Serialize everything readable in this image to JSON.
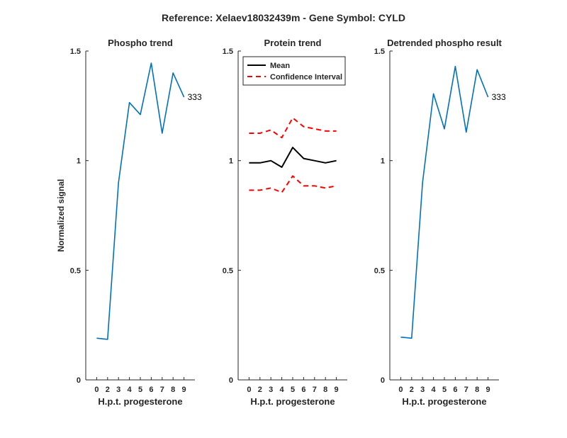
{
  "figure": {
    "title": "Reference:  Xelaev18032439m - Gene Symbol:  CYLD",
    "ylabel": "Normalized signal"
  },
  "chart_data": [
    {
      "type": "line",
      "title": "Phospho trend",
      "xlabel": "H.p.t. progesterone",
      "ylabel": "Normalized signal",
      "x_ticks": [
        "0",
        "2",
        "3",
        "4",
        "5",
        "6",
        "7",
        "8",
        "9"
      ],
      "y_ticks": [
        "0",
        "0.5",
        "1",
        "1.5"
      ],
      "ylim": [
        0,
        1.5
      ],
      "grid": false,
      "series": [
        {
          "color": "#0072BD",
          "values": [
            0.19,
            0.185,
            0.9,
            1.265,
            1.21,
            1.445,
            1.125,
            1.4,
            1.29
          ],
          "end_label": "333"
        }
      ]
    },
    {
      "type": "line",
      "title": "Protein trend",
      "xlabel": "H.p.t. progesterone",
      "x_ticks": [
        "0",
        "2",
        "3",
        "4",
        "5",
        "6",
        "7",
        "8",
        "9"
      ],
      "y_ticks": [
        "0",
        "0.5",
        "1",
        "1.5"
      ],
      "ylim": [
        0,
        1.5
      ],
      "grid": false,
      "legend": {
        "placement": "top-left"
      },
      "series": [
        {
          "name": "Mean",
          "color": "#000000",
          "style": "solid",
          "values": [
            0.99,
            0.99,
            1.0,
            0.97,
            1.06,
            1.01,
            1.0,
            0.99,
            1.0
          ]
        },
        {
          "name": "Confidence Interval",
          "color": "#FF0000",
          "style": "dashed",
          "values": [
            1.125,
            1.125,
            1.14,
            1.105,
            1.195,
            1.155,
            1.145,
            1.135,
            1.135
          ]
        },
        {
          "color": "#FF0000",
          "style": "dashed",
          "values": [
            0.865,
            0.865,
            0.875,
            0.855,
            0.93,
            0.885,
            0.885,
            0.875,
            0.885
          ]
        }
      ]
    },
    {
      "type": "line",
      "title": "Detrended phospho result",
      "xlabel": "H.p.t. progesterone",
      "x_ticks": [
        "0",
        "2",
        "3",
        "4",
        "5",
        "6",
        "7",
        "8",
        "9"
      ],
      "y_ticks": [
        "0",
        "0.5",
        "1",
        "1.5"
      ],
      "ylim": [
        0,
        1.5
      ],
      "grid": false,
      "series": [
        {
          "color": "#0072BD",
          "values": [
            0.195,
            0.19,
            0.9,
            1.305,
            1.145,
            1.43,
            1.13,
            1.415,
            1.29
          ],
          "end_label": "333"
        }
      ]
    }
  ]
}
